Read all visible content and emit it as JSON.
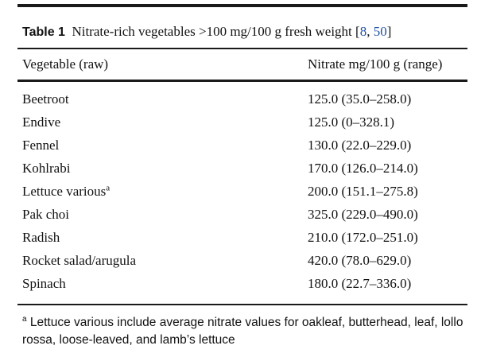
{
  "table": {
    "caption_label": "Table 1",
    "caption_text": "Nitrate-rich vegetables >100 mg/100 g fresh weight [",
    "caption_ref1": "8",
    "caption_sep": ", ",
    "caption_ref2": "50",
    "caption_close": "]",
    "headers": [
      "Vegetable (raw)",
      "Nitrate mg/100 g (range)"
    ],
    "rows": [
      {
        "vegetable": "Beetroot",
        "sup": "",
        "nitrate": "125.0 (35.0–258.0)"
      },
      {
        "vegetable": "Endive",
        "sup": "",
        "nitrate": "125.0 (0–328.1)"
      },
      {
        "vegetable": "Fennel",
        "sup": "",
        "nitrate": "130.0 (22.0–229.0)"
      },
      {
        "vegetable": "Kohlrabi",
        "sup": "",
        "nitrate": "170.0 (126.0–214.0)"
      },
      {
        "vegetable": "Lettuce various",
        "sup": "a",
        "nitrate": "200.0 (151.1–275.8)"
      },
      {
        "vegetable": "Pak choi",
        "sup": "",
        "nitrate": "325.0 (229.0–490.0)"
      },
      {
        "vegetable": "Radish",
        "sup": "",
        "nitrate": "210.0 (172.0–251.0)"
      },
      {
        "vegetable": "Rocket salad/arugula",
        "sup": "",
        "nitrate": "420.0 (78.0–629.0)"
      },
      {
        "vegetable": "Spinach",
        "sup": "",
        "nitrate": "180.0 (22.7–336.0)"
      }
    ],
    "footnote_marker": "a",
    "footnote_text": "Lettuce various include average nitrate values for oakleaf, butterhead, leaf, lollo rossa, loose-leaved, and lamb’s lettuce"
  },
  "colors": {
    "reference_link": "#1d4fa3",
    "rule": "#1a1a1a"
  }
}
